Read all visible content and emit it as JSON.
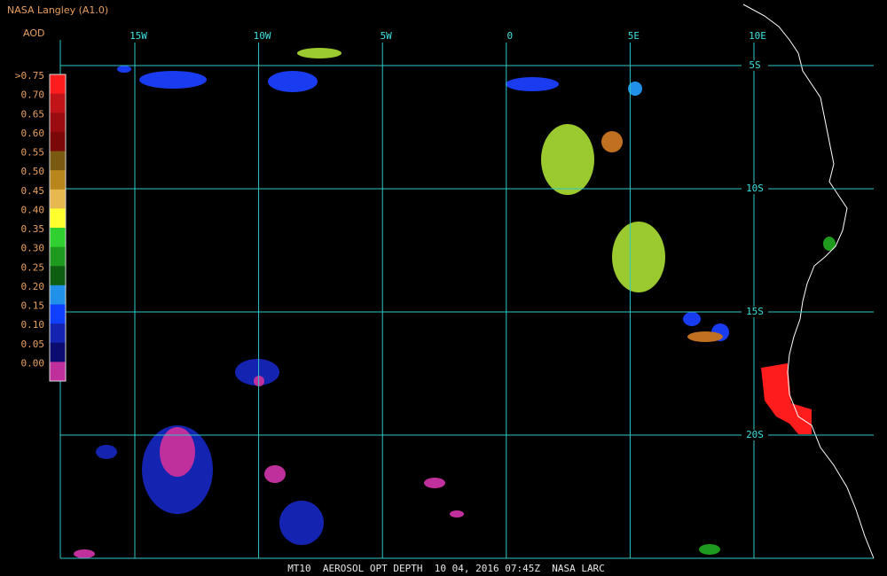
{
  "header": {
    "title": "NASA Langley (A1.0)",
    "variable": "AOD"
  },
  "colorbar": {
    "labels": [
      ">0.75",
      "0.70",
      "0.65",
      "0.60",
      "0.55",
      "0.50",
      "0.45",
      "0.40",
      "0.35",
      "0.30",
      "0.25",
      "0.20",
      "0.15",
      "0.10",
      "0.05",
      "0.00"
    ],
    "colors": [
      "#ff1c1c",
      "#c01418",
      "#9a0c10",
      "#7a0808",
      "#7a5a10",
      "#b8861c",
      "#e8b850",
      "#ffff30",
      "#30d030",
      "#1e9a1e",
      "#0e5e12",
      "#2090e8",
      "#1040ff",
      "#1424b0",
      "#0c0c70",
      "#c0309c"
    ]
  },
  "longitudes": [
    "15W",
    "10W",
    "5W",
    "0",
    "5E",
    "10E"
  ],
  "latitudes": [
    "5S",
    "10S",
    "15S",
    "20S"
  ],
  "footer": "MT10  AEROSOL OPT DEPTH  10 04, 2016 07:45Z  NASA LARC"
}
